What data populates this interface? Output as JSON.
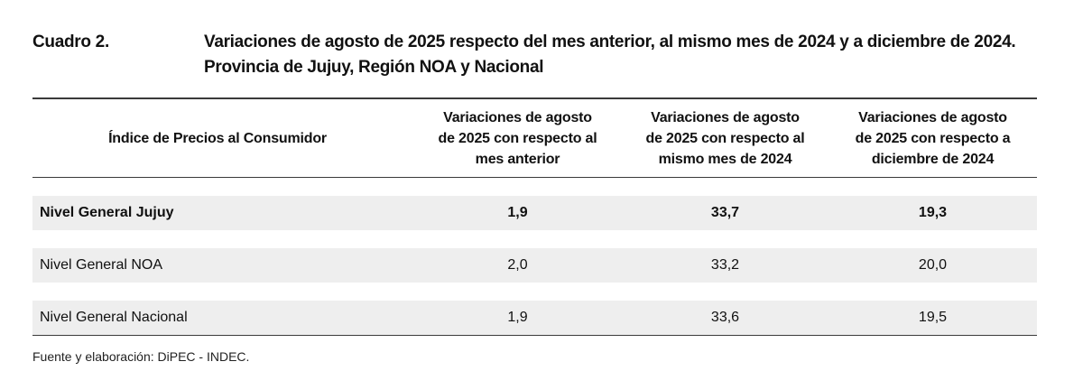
{
  "caption": {
    "number": "Cuadro 2.",
    "title_line1": "Variaciones de agosto de 2025 respecto del mes anterior, al mismo mes de 2024 y a diciembre de 2024.",
    "title_line2": "Provincia de Jujuy, Región NOA y Nacional"
  },
  "table": {
    "headers": [
      [
        "Índice de Precios al Consumidor"
      ],
      [
        "Variaciones de agosto",
        "de 2025 con respecto al",
        "mes anterior"
      ],
      [
        "Variaciones de agosto",
        "de 2025 con respecto al",
        "mismo mes de 2024"
      ],
      [
        "Variaciones de agosto",
        "de 2025 con respecto a",
        "diciembre de 2024"
      ]
    ],
    "rows": [
      {
        "label": "Nivel General Jujuy",
        "values": [
          "1,9",
          "33,7",
          "19,3"
        ]
      },
      {
        "label": "Nivel General NOA",
        "values": [
          "2,0",
          "33,2",
          "20,0"
        ]
      },
      {
        "label": "Nivel General Nacional",
        "values": [
          "1,9",
          "33,6",
          "19,5"
        ]
      }
    ]
  },
  "source": "Fuente y elaboración: DiPEC - INDEC."
}
